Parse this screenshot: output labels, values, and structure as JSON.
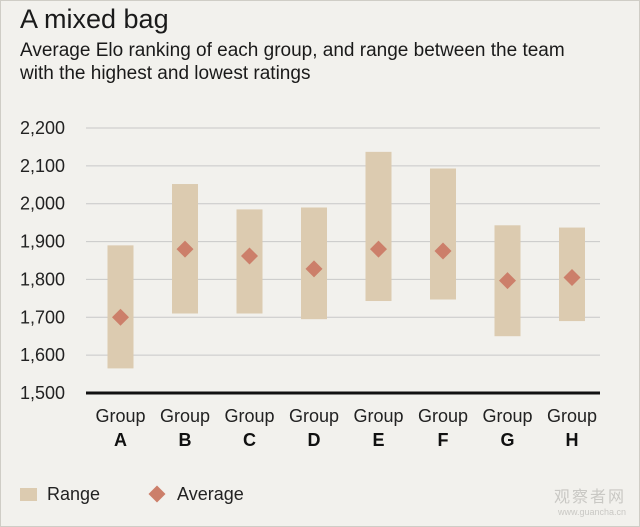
{
  "chart_data": {
    "type": "range-dot",
    "title": "A mixed bag",
    "subtitle": "Average Elo ranking of each group, and range between the team with the highest and lowest ratings",
    "category_prefix": "Group",
    "categories": [
      "A",
      "B",
      "C",
      "D",
      "E",
      "F",
      "G",
      "H"
    ],
    "y_ticks": [
      "1,500",
      "1,600",
      "1,700",
      "1,800",
      "1,900",
      "2,000",
      "2,100",
      "2,200"
    ],
    "ylim": [
      1500,
      2200
    ],
    "grid": true,
    "series": [
      {
        "name": "Range",
        "low": [
          1565,
          1710,
          1710,
          1695,
          1743,
          1747,
          1650,
          1690
        ],
        "high": [
          1890,
          2052,
          1985,
          1990,
          2137,
          2093,
          1943,
          1937
        ]
      },
      {
        "name": "Average",
        "values": [
          1700,
          1880,
          1862,
          1828,
          1880,
          1875,
          1797,
          1805
        ]
      }
    ],
    "legend_position": "bottom-left",
    "colors": {
      "range": "#dccbb0",
      "average": "#cc7f6a",
      "grid": "#c8c8c8",
      "axis": "#111111"
    }
  },
  "watermark": {
    "line1": "观察者网",
    "line2": "www.guancha.cn"
  }
}
